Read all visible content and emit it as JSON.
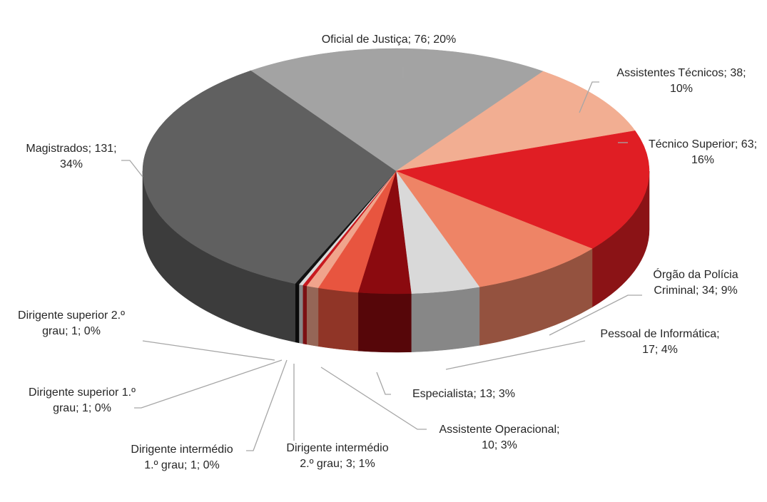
{
  "chart_data": {
    "type": "pie",
    "separator": "; ",
    "categories": [
      "Oficial de Justiça",
      "Assistentes Técnicos",
      "Técnico Superior",
      "Órgão da Polícia Criminal",
      "Pessoal de Informática",
      "Especialista",
      "Assistente Operacional",
      "Dirigente intermédio 2.º grau",
      "Dirigente intermédio 1.º grau",
      "Dirigente superior 1.º grau",
      "Dirigente superior 2.º grau",
      "Magistrados"
    ],
    "values": [
      76,
      38,
      63,
      34,
      17,
      13,
      10,
      3,
      1,
      1,
      1,
      131
    ],
    "value_labels": [
      "76; 20%",
      "38; 10%",
      "63; 16%",
      "34; 9%",
      "17; 4%",
      "13; 3%",
      "10; 3%",
      "3; 1%",
      "1; 0%",
      "1; 0%",
      "1; 0%",
      "131; 34%"
    ],
    "colors": [
      "#a3a3a3",
      "#f2ae92",
      "#e01e24",
      "#ee8466",
      "#d9d9d9",
      "#8b0a0f",
      "#e8553f",
      "#f0a48c",
      "#c8191f",
      "#d9d9d9",
      "#111111",
      "#606060"
    ]
  }
}
